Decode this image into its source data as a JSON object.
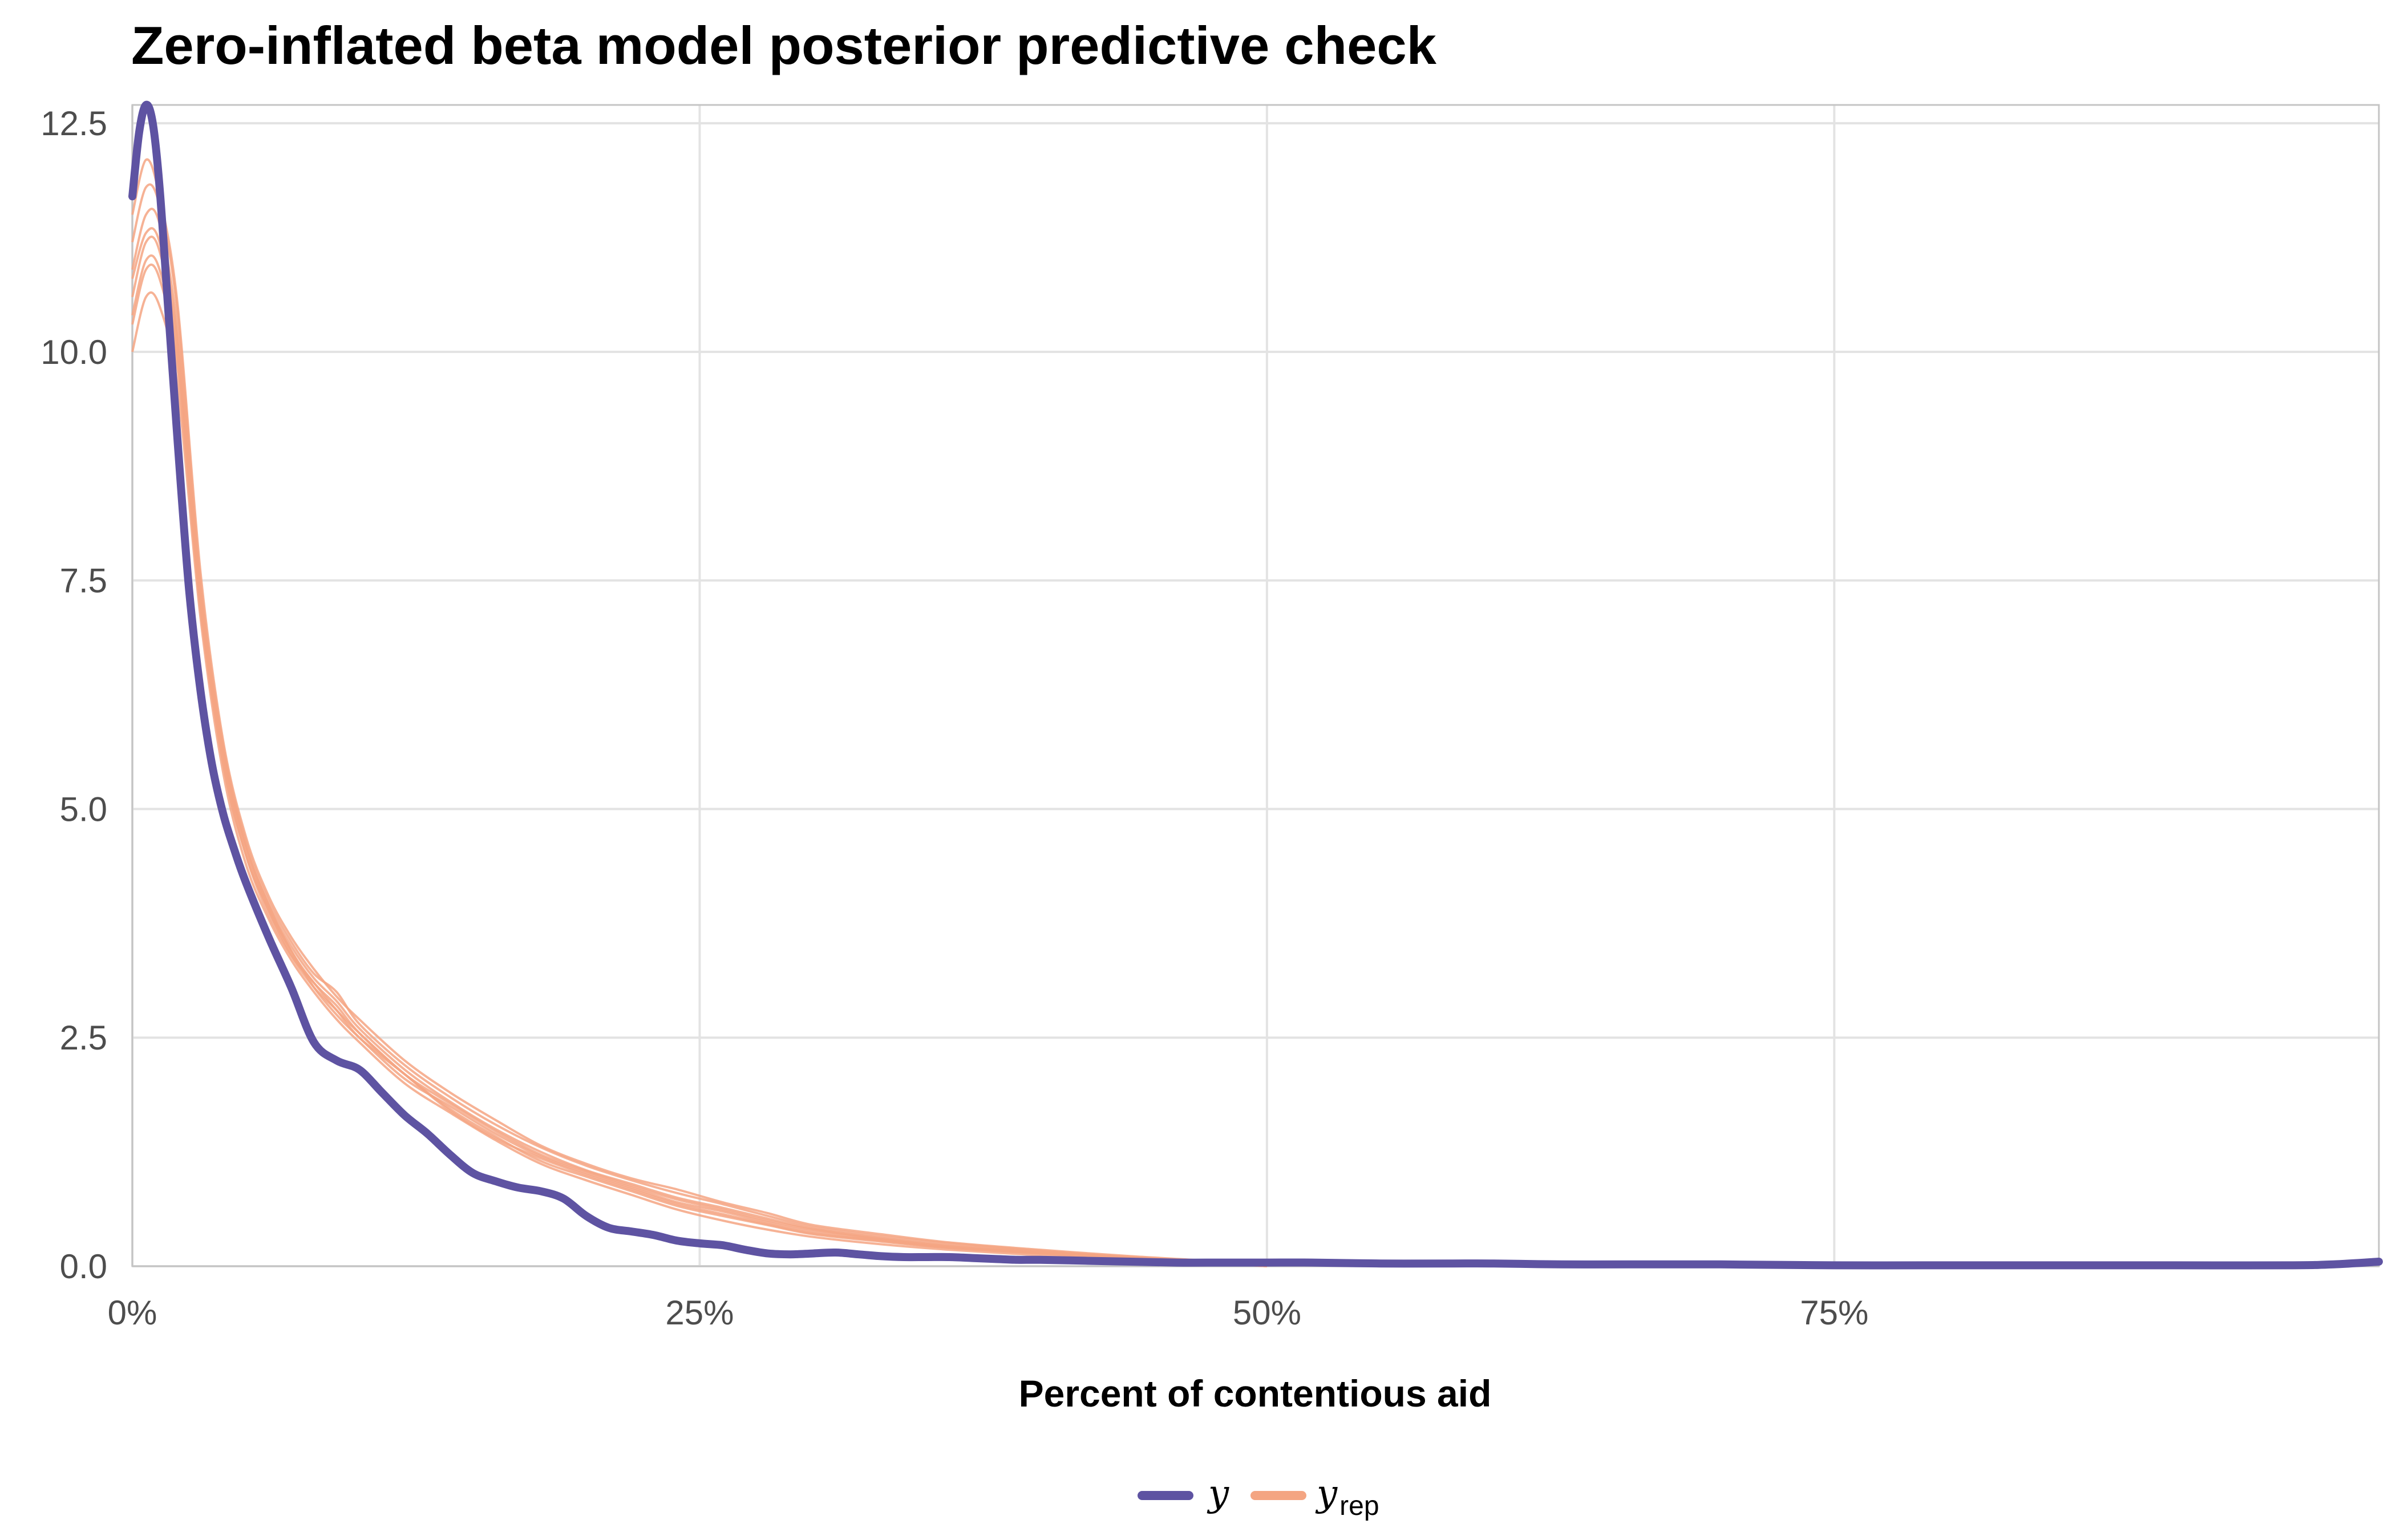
{
  "chart_data": {
    "type": "line",
    "title": "Zero-inflated beta model posterior predictive check",
    "xlabel": "Percent of contentious aid",
    "ylabel": "",
    "xlim": [
      0,
      0.99
    ],
    "ylim": [
      0,
      12.7
    ],
    "x_ticks": [
      0,
      0.25,
      0.5,
      0.75
    ],
    "x_tick_labels": [
      "0%",
      "25%",
      "50%",
      "75%"
    ],
    "y_ticks": [
      0,
      2.5,
      5,
      7.5,
      10,
      12.5
    ],
    "y_tick_labels": [
      "0.0",
      "2.5",
      "5.0",
      "7.5",
      "10.0",
      "12.5"
    ],
    "grid": true,
    "legend_position": "bottom",
    "legend": [
      {
        "label": "y",
        "color": "#5e53a2"
      },
      {
        "label": "y",
        "subscript": "rep",
        "color": "#f4a582"
      }
    ],
    "colors": {
      "y": "#5e53a2",
      "y_rep": "#f4a582"
    },
    "series": [
      {
        "name": "y",
        "x": [
          0,
          0.003,
          0.006,
          0.009,
          0.012,
          0.016,
          0.02,
          0.025,
          0.03,
          0.035,
          0.04,
          0.045,
          0.05,
          0.06,
          0.07,
          0.08,
          0.09,
          0.1,
          0.11,
          0.12,
          0.13,
          0.14,
          0.15,
          0.16,
          0.17,
          0.18,
          0.19,
          0.2,
          0.21,
          0.22,
          0.23,
          0.24,
          0.25,
          0.26,
          0.27,
          0.28,
          0.29,
          0.3,
          0.31,
          0.32,
          0.33,
          0.34,
          0.35,
          0.36,
          0.37,
          0.38,
          0.39,
          0.4,
          0.42,
          0.44,
          0.46,
          0.48,
          0.5,
          0.52,
          0.55,
          0.58,
          0.6,
          0.63,
          0.66,
          0.7,
          0.75,
          0.8,
          0.85,
          0.9,
          0.95,
          0.97,
          0.99
        ],
        "y": [
          11.7,
          12.4,
          12.7,
          12.5,
          11.8,
          10.4,
          9.0,
          7.4,
          6.3,
          5.5,
          4.95,
          4.55,
          4.2,
          3.6,
          3.05,
          2.45,
          2.25,
          2.15,
          1.9,
          1.65,
          1.45,
          1.22,
          1.02,
          0.93,
          0.86,
          0.82,
          0.74,
          0.55,
          0.42,
          0.38,
          0.34,
          0.28,
          0.25,
          0.23,
          0.18,
          0.14,
          0.13,
          0.14,
          0.15,
          0.13,
          0.11,
          0.1,
          0.1,
          0.1,
          0.09,
          0.08,
          0.07,
          0.07,
          0.06,
          0.05,
          0.04,
          0.04,
          0.04,
          0.04,
          0.03,
          0.03,
          0.03,
          0.02,
          0.02,
          0.02,
          0.01,
          0.01,
          0.01,
          0.01,
          0.01,
          0.02,
          0.05
        ]
      },
      {
        "name": "y_rep",
        "x": [
          0,
          0.006,
          0.012,
          0.02,
          0.03,
          0.04,
          0.05,
          0.06,
          0.07,
          0.08,
          0.09,
          0.1,
          0.12,
          0.14,
          0.16,
          0.18,
          0.2,
          0.22,
          0.24,
          0.26,
          0.28,
          0.3,
          0.33,
          0.36,
          0.4,
          0.44,
          0.48,
          0.5
        ],
        "y": [
          10.0,
          10.6,
          10.5,
          9.6,
          7.1,
          5.4,
          4.4,
          3.8,
          3.35,
          3.0,
          2.7,
          2.45,
          2.0,
          1.68,
          1.38,
          1.12,
          0.94,
          0.78,
          0.62,
          0.5,
          0.4,
          0.32,
          0.24,
          0.18,
          0.12,
          0.07,
          0.03,
          0.0
        ]
      },
      {
        "name": "y_rep",
        "x": [
          0,
          0.006,
          0.012,
          0.02,
          0.03,
          0.04,
          0.05,
          0.06,
          0.07,
          0.08,
          0.09,
          0.1,
          0.12,
          0.14,
          0.16,
          0.18,
          0.2,
          0.22,
          0.24,
          0.26,
          0.28,
          0.3,
          0.33,
          0.36,
          0.4,
          0.44,
          0.48,
          0.5
        ],
        "y": [
          10.3,
          10.9,
          10.8,
          9.8,
          7.2,
          5.5,
          4.5,
          3.85,
          3.4,
          3.1,
          2.8,
          2.55,
          2.1,
          1.72,
          1.42,
          1.15,
          0.98,
          0.82,
          0.66,
          0.55,
          0.45,
          0.35,
          0.27,
          0.2,
          0.14,
          0.08,
          0.03,
          0.0
        ]
      },
      {
        "name": "y_rep",
        "x": [
          0,
          0.006,
          0.012,
          0.02,
          0.03,
          0.04,
          0.05,
          0.06,
          0.07,
          0.08,
          0.09,
          0.1,
          0.12,
          0.14,
          0.16,
          0.18,
          0.2,
          0.22,
          0.24,
          0.26,
          0.28,
          0.3,
          0.33,
          0.36,
          0.4,
          0.44,
          0.48,
          0.5
        ],
        "y": [
          10.6,
          11.2,
          11.1,
          10.0,
          7.3,
          5.6,
          4.55,
          3.9,
          3.45,
          3.05,
          2.75,
          2.5,
          2.05,
          1.75,
          1.45,
          1.2,
          1.02,
          0.86,
          0.7,
          0.6,
          0.48,
          0.38,
          0.29,
          0.21,
          0.15,
          0.09,
          0.04,
          0.0
        ]
      },
      {
        "name": "y_rep",
        "x": [
          0,
          0.006,
          0.012,
          0.02,
          0.03,
          0.04,
          0.05,
          0.06,
          0.07,
          0.08,
          0.09,
          0.1,
          0.12,
          0.14,
          0.16,
          0.18,
          0.2,
          0.22,
          0.24,
          0.26,
          0.28,
          0.3,
          0.33,
          0.36,
          0.4,
          0.44,
          0.48,
          0.5
        ],
        "y": [
          10.9,
          11.5,
          11.4,
          10.2,
          7.4,
          5.65,
          4.6,
          3.95,
          3.5,
          3.15,
          2.9,
          2.6,
          2.15,
          1.8,
          1.5,
          1.25,
          1.05,
          0.9,
          0.75,
          0.64,
          0.52,
          0.41,
          0.31,
          0.23,
          0.16,
          0.1,
          0.04,
          0.0
        ]
      },
      {
        "name": "y_rep",
        "x": [
          0,
          0.006,
          0.012,
          0.02,
          0.03,
          0.04,
          0.05,
          0.06,
          0.07,
          0.08,
          0.09,
          0.1,
          0.12,
          0.14,
          0.16,
          0.18,
          0.2,
          0.22,
          0.24,
          0.26,
          0.28,
          0.3,
          0.33,
          0.36,
          0.4,
          0.44,
          0.48,
          0.5
        ],
        "y": [
          11.2,
          11.8,
          11.6,
          10.4,
          7.5,
          5.7,
          4.65,
          4.0,
          3.55,
          3.2,
          3.0,
          2.65,
          2.2,
          1.85,
          1.55,
          1.3,
          1.1,
          0.94,
          0.8,
          0.68,
          0.55,
          0.43,
          0.33,
          0.25,
          0.17,
          0.1,
          0.05,
          0.0
        ]
      },
      {
        "name": "y_rep",
        "x": [
          0,
          0.006,
          0.012,
          0.02,
          0.03,
          0.04,
          0.05,
          0.06,
          0.07,
          0.08,
          0.09,
          0.1,
          0.12,
          0.14,
          0.16,
          0.18,
          0.2,
          0.22,
          0.24,
          0.26,
          0.28,
          0.3,
          0.33,
          0.36,
          0.4,
          0.44,
          0.48,
          0.5
        ],
        "y": [
          11.5,
          12.1,
          11.7,
          10.5,
          7.6,
          5.75,
          4.7,
          4.05,
          3.6,
          3.25,
          2.95,
          2.7,
          2.25,
          1.9,
          1.6,
          1.32,
          1.12,
          0.96,
          0.84,
          0.7,
          0.58,
          0.45,
          0.35,
          0.26,
          0.18,
          0.11,
          0.05,
          0.0
        ]
      },
      {
        "name": "y_rep",
        "x": [
          0,
          0.006,
          0.012,
          0.02,
          0.03,
          0.04,
          0.05,
          0.06,
          0.07,
          0.08,
          0.09,
          0.1,
          0.12,
          0.14,
          0.16,
          0.18,
          0.2,
          0.22,
          0.24,
          0.26,
          0.28,
          0.3,
          0.33,
          0.36,
          0.4,
          0.44,
          0.48,
          0.5
        ],
        "y": [
          10.4,
          11.0,
          10.9,
          9.9,
          7.25,
          5.5,
          4.5,
          3.9,
          3.4,
          3.05,
          2.8,
          2.5,
          2.1,
          1.7,
          1.4,
          1.18,
          1.0,
          0.84,
          0.68,
          0.57,
          0.46,
          0.36,
          0.28,
          0.2,
          0.14,
          0.08,
          0.03,
          0.0
        ]
      },
      {
        "name": "y_rep",
        "x": [
          0,
          0.006,
          0.012,
          0.02,
          0.03,
          0.04,
          0.05,
          0.06,
          0.07,
          0.08,
          0.09,
          0.1,
          0.12,
          0.14,
          0.16,
          0.18,
          0.2,
          0.22,
          0.24,
          0.26,
          0.28,
          0.3,
          0.33,
          0.36,
          0.4,
          0.44,
          0.48,
          0.5
        ],
        "y": [
          10.8,
          11.3,
          11.2,
          10.1,
          7.35,
          5.6,
          4.6,
          3.95,
          3.45,
          3.1,
          2.85,
          2.55,
          2.1,
          1.78,
          1.48,
          1.22,
          1.04,
          0.88,
          0.73,
          0.62,
          0.5,
          0.4,
          0.3,
          0.22,
          0.15,
          0.09,
          0.04,
          0.0
        ]
      }
    ]
  }
}
